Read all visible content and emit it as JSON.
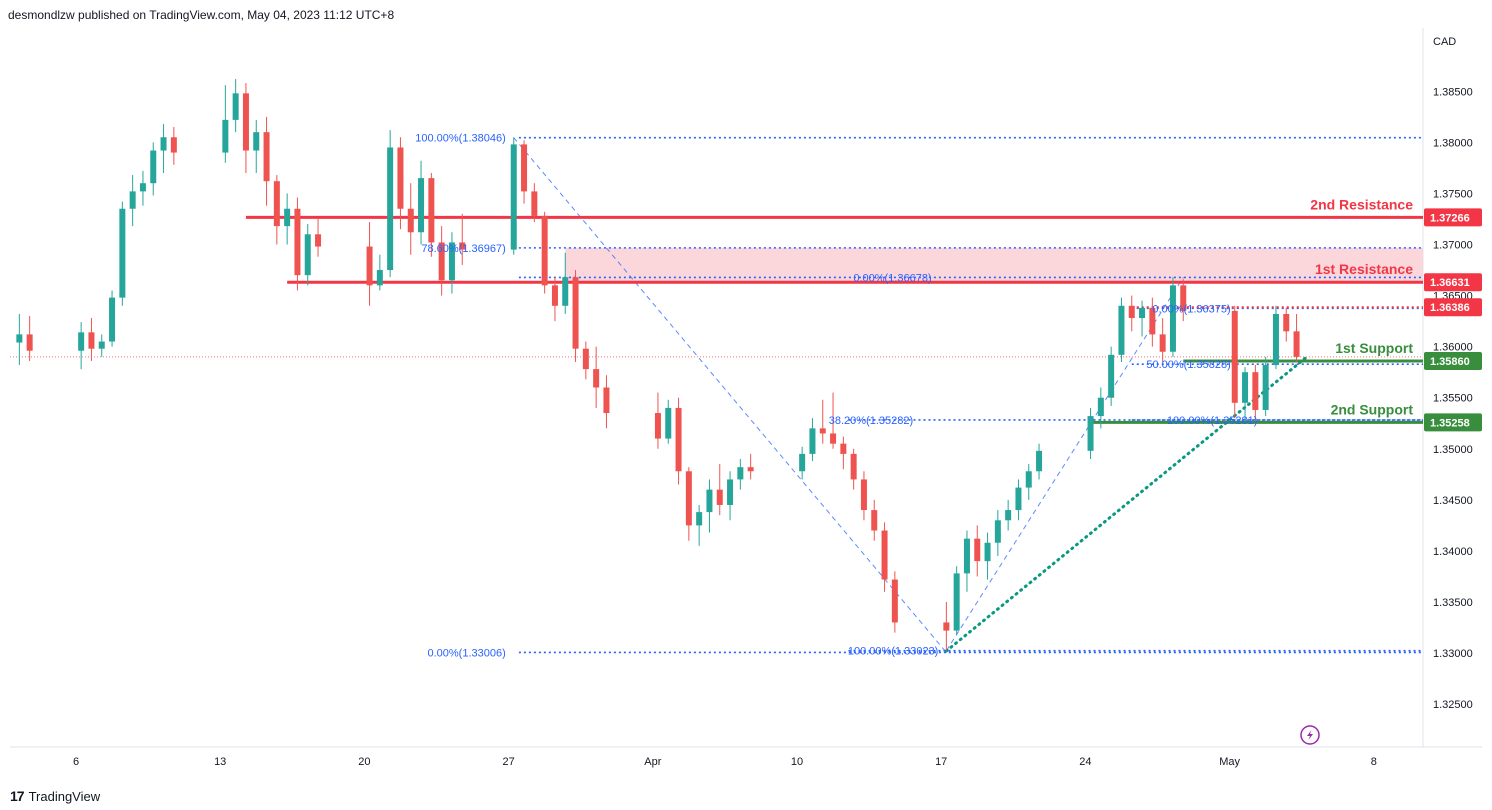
{
  "header": {
    "publisher": "desmondlzw published on TradingView.com, May 04, 2023 11:12 UTC+8"
  },
  "footer": {
    "brand_mark": "17",
    "brand": "TradingView"
  },
  "colors": {
    "up": "#26a69a",
    "down": "#ef5350",
    "resistance": "#f23645",
    "resistance_zone": "#fbd3d7",
    "support": "#388e3c",
    "fib": "#2962ff",
    "trend": "#089981",
    "bg": "#ffffff",
    "axis_text": "#131722"
  },
  "chart_data": {
    "type": "candlestick",
    "currency": "CAD",
    "ylim": [
      1.321,
      1.391
    ],
    "price_ticks": [
      "1.38500",
      "1.38000",
      "1.37500",
      "1.37000",
      "1.36500",
      "1.36000",
      "1.35500",
      "1.35000",
      "1.34500",
      "1.34000",
      "1.33500",
      "1.33000",
      "1.32500"
    ],
    "x_ticks": [
      {
        "label": "6",
        "date": "2023-03-06"
      },
      {
        "label": "13",
        "date": "2023-03-13"
      },
      {
        "label": "20",
        "date": "2023-03-20"
      },
      {
        "label": "27",
        "date": "2023-03-27"
      },
      {
        "label": "Apr",
        "date": "2023-04-03"
      },
      {
        "label": "10",
        "date": "2023-04-10"
      },
      {
        "label": "17",
        "date": "2023-04-17"
      },
      {
        "label": "24",
        "date": "2023-04-24"
      },
      {
        "label": "May",
        "date": "2023-05-01"
      },
      {
        "label": "8",
        "date": "2023-05-08"
      }
    ],
    "last_price": 1.359,
    "levels": [
      {
        "name": "2nd Resistance",
        "value": 1.37266,
        "label": "1.37266",
        "kind": "resistance"
      },
      {
        "name": "1st Resistance",
        "value": 1.36631,
        "label": "1.36631",
        "kind": "resistance"
      },
      {
        "name": "",
        "value": 1.36386,
        "label": "1.36386",
        "kind": "resistance"
      },
      {
        "name": "1st Support",
        "value": 1.3586,
        "label": "1.35860",
        "kind": "support"
      },
      {
        "name": "2nd Support",
        "value": 1.35258,
        "label": "1.35258",
        "kind": "support"
      }
    ],
    "resistance_zone": [
      1.36631,
      1.36967
    ],
    "fib_labels": [
      {
        "text": "100.00%(1.38046)",
        "value": 1.38046
      },
      {
        "text": "78.60%(1.36967)",
        "value": 1.36967
      },
      {
        "text": "0.00%(1.33006)",
        "value": 1.33006
      },
      {
        "text": "0.00%(1.36678)",
        "value": 1.36678
      },
      {
        "text": "38.20%(1.35282)",
        "value": 1.35282
      },
      {
        "text": "100.00%(1.33023)",
        "value": 1.33023
      },
      {
        "text": "0.00%(1.36375)",
        "value": 1.36375
      },
      {
        "text": "50.00%(1.35828)",
        "value": 1.35828
      },
      {
        "text": "100.00%(1.35281)",
        "value": 1.35281
      }
    ],
    "candles": [
      {
        "d": "2023-03-03 06:00",
        "o": 1.3604,
        "h": 1.3632,
        "l": 1.3582,
        "c": 1.3612
      },
      {
        "d": "2023-03-03 18:00",
        "o": 1.3612,
        "h": 1.363,
        "l": 1.3586,
        "c": 1.3596
      },
      {
        "d": "2023-03-06 06:00",
        "o": 1.3596,
        "h": 1.3624,
        "l": 1.3578,
        "c": 1.3614
      },
      {
        "d": "2023-03-06 18:00",
        "o": 1.3614,
        "h": 1.3628,
        "l": 1.3586,
        "c": 1.3598
      },
      {
        "d": "2023-03-07 06:00",
        "o": 1.3598,
        "h": 1.3612,
        "l": 1.359,
        "c": 1.3605
      },
      {
        "d": "2023-03-07 18:00",
        "o": 1.3605,
        "h": 1.3655,
        "l": 1.36,
        "c": 1.3648
      },
      {
        "d": "2023-03-08 06:00",
        "o": 1.3648,
        "h": 1.3742,
        "l": 1.364,
        "c": 1.3735
      },
      {
        "d": "2023-03-08 18:00",
        "o": 1.3735,
        "h": 1.3768,
        "l": 1.3718,
        "c": 1.3752
      },
      {
        "d": "2023-03-09 06:00",
        "o": 1.3752,
        "h": 1.3772,
        "l": 1.3738,
        "c": 1.376
      },
      {
        "d": "2023-03-09 18:00",
        "o": 1.376,
        "h": 1.38,
        "l": 1.3748,
        "c": 1.3792
      },
      {
        "d": "2023-03-10 06:00",
        "o": 1.3792,
        "h": 1.3818,
        "l": 1.377,
        "c": 1.3805
      },
      {
        "d": "2023-03-10 18:00",
        "o": 1.3805,
        "h": 1.3815,
        "l": 1.3778,
        "c": 1.379
      },
      {
        "d": "2023-03-13 06:00",
        "o": 1.379,
        "h": 1.3856,
        "l": 1.378,
        "c": 1.3822
      },
      {
        "d": "2023-03-13 18:00",
        "o": 1.3822,
        "h": 1.3862,
        "l": 1.381,
        "c": 1.3848
      },
      {
        "d": "2023-03-14 06:00",
        "o": 1.3848,
        "h": 1.3858,
        "l": 1.377,
        "c": 1.3792
      },
      {
        "d": "2023-03-14 18:00",
        "o": 1.3792,
        "h": 1.3822,
        "l": 1.377,
        "c": 1.381
      },
      {
        "d": "2023-03-15 06:00",
        "o": 1.381,
        "h": 1.3825,
        "l": 1.3738,
        "c": 1.3762
      },
      {
        "d": "2023-03-15 18:00",
        "o": 1.3762,
        "h": 1.3768,
        "l": 1.37,
        "c": 1.3718
      },
      {
        "d": "2023-03-16 06:00",
        "o": 1.3718,
        "h": 1.375,
        "l": 1.37,
        "c": 1.3735
      },
      {
        "d": "2023-03-16 18:00",
        "o": 1.3735,
        "h": 1.3746,
        "l": 1.3655,
        "c": 1.367
      },
      {
        "d": "2023-03-17 06:00",
        "o": 1.367,
        "h": 1.372,
        "l": 1.366,
        "c": 1.371
      },
      {
        "d": "2023-03-17 18:00",
        "o": 1.371,
        "h": 1.3726,
        "l": 1.3688,
        "c": 1.3698
      },
      {
        "d": "2023-03-20 06:00",
        "o": 1.3698,
        "h": 1.3722,
        "l": 1.364,
        "c": 1.366
      },
      {
        "d": "2023-03-20 18:00",
        "o": 1.366,
        "h": 1.369,
        "l": 1.3655,
        "c": 1.3675
      },
      {
        "d": "2023-03-21 06:00",
        "o": 1.3675,
        "h": 1.3812,
        "l": 1.3668,
        "c": 1.3795
      },
      {
        "d": "2023-03-21 18:00",
        "o": 1.3795,
        "h": 1.3805,
        "l": 1.3715,
        "c": 1.3735
      },
      {
        "d": "2023-03-22 06:00",
        "o": 1.3735,
        "h": 1.376,
        "l": 1.369,
        "c": 1.3712
      },
      {
        "d": "2023-03-22 18:00",
        "o": 1.3712,
        "h": 1.3782,
        "l": 1.37,
        "c": 1.3765
      },
      {
        "d": "2023-03-23 06:00",
        "o": 1.3765,
        "h": 1.377,
        "l": 1.3688,
        "c": 1.3702
      },
      {
        "d": "2023-03-23 18:00",
        "o": 1.3702,
        "h": 1.3718,
        "l": 1.365,
        "c": 1.3665
      },
      {
        "d": "2023-03-24 06:00",
        "o": 1.3665,
        "h": 1.3712,
        "l": 1.3652,
        "c": 1.3702
      },
      {
        "d": "2023-03-24 18:00",
        "o": 1.3702,
        "h": 1.373,
        "l": 1.368,
        "c": 1.3695
      },
      {
        "d": "2023-03-27 06:00",
        "o": 1.3695,
        "h": 1.3805,
        "l": 1.369,
        "c": 1.3798
      },
      {
        "d": "2023-03-27 18:00",
        "o": 1.3798,
        "h": 1.3802,
        "l": 1.374,
        "c": 1.3752
      },
      {
        "d": "2023-03-28 06:00",
        "o": 1.3752,
        "h": 1.376,
        "l": 1.3722,
        "c": 1.3728
      },
      {
        "d": "2023-03-28 18:00",
        "o": 1.3728,
        "h": 1.3732,
        "l": 1.3652,
        "c": 1.366
      },
      {
        "d": "2023-03-29 06:00",
        "o": 1.366,
        "h": 1.3668,
        "l": 1.3625,
        "c": 1.364
      },
      {
        "d": "2023-03-29 18:00",
        "o": 1.364,
        "h": 1.3692,
        "l": 1.3632,
        "c": 1.3668
      },
      {
        "d": "2023-03-30 06:00",
        "o": 1.3668,
        "h": 1.3675,
        "l": 1.3585,
        "c": 1.3598
      },
      {
        "d": "2023-03-30 18:00",
        "o": 1.3598,
        "h": 1.3605,
        "l": 1.3568,
        "c": 1.3578
      },
      {
        "d": "2023-03-31 06:00",
        "o": 1.3578,
        "h": 1.36,
        "l": 1.354,
        "c": 1.356
      },
      {
        "d": "2023-03-31 18:00",
        "o": 1.356,
        "h": 1.3572,
        "l": 1.352,
        "c": 1.3535
      },
      {
        "d": "2023-04-03 06:00",
        "o": 1.3535,
        "h": 1.3555,
        "l": 1.35,
        "c": 1.351
      },
      {
        "d": "2023-04-03 18:00",
        "o": 1.351,
        "h": 1.3548,
        "l": 1.3505,
        "c": 1.354
      },
      {
        "d": "2023-04-04 06:00",
        "o": 1.354,
        "h": 1.355,
        "l": 1.3465,
        "c": 1.3478
      },
      {
        "d": "2023-04-04 18:00",
        "o": 1.3478,
        "h": 1.3482,
        "l": 1.341,
        "c": 1.3425
      },
      {
        "d": "2023-04-05 06:00",
        "o": 1.3425,
        "h": 1.3445,
        "l": 1.3405,
        "c": 1.3438
      },
      {
        "d": "2023-04-05 18:00",
        "o": 1.3438,
        "h": 1.347,
        "l": 1.3418,
        "c": 1.346
      },
      {
        "d": "2023-04-06 06:00",
        "o": 1.346,
        "h": 1.3485,
        "l": 1.3435,
        "c": 1.3445
      },
      {
        "d": "2023-04-06 18:00",
        "o": 1.3445,
        "h": 1.3478,
        "l": 1.343,
        "c": 1.347
      },
      {
        "d": "2023-04-07 06:00",
        "o": 1.347,
        "h": 1.349,
        "l": 1.346,
        "c": 1.3482
      },
      {
        "d": "2023-04-07 18:00",
        "o": 1.3482,
        "h": 1.3495,
        "l": 1.347,
        "c": 1.3478
      },
      {
        "d": "2023-04-10 06:00",
        "o": 1.3478,
        "h": 1.3502,
        "l": 1.347,
        "c": 1.3495
      },
      {
        "d": "2023-04-10 18:00",
        "o": 1.3495,
        "h": 1.353,
        "l": 1.3488,
        "c": 1.352
      },
      {
        "d": "2023-04-11 06:00",
        "o": 1.352,
        "h": 1.3548,
        "l": 1.3505,
        "c": 1.3515
      },
      {
        "d": "2023-04-11 18:00",
        "o": 1.3515,
        "h": 1.3555,
        "l": 1.35,
        "c": 1.3505
      },
      {
        "d": "2023-04-12 06:00",
        "o": 1.3505,
        "h": 1.3512,
        "l": 1.348,
        "c": 1.3495
      },
      {
        "d": "2023-04-12 18:00",
        "o": 1.3495,
        "h": 1.35,
        "l": 1.346,
        "c": 1.347
      },
      {
        "d": "2023-04-13 06:00",
        "o": 1.347,
        "h": 1.3478,
        "l": 1.343,
        "c": 1.344
      },
      {
        "d": "2023-04-13 18:00",
        "o": 1.344,
        "h": 1.345,
        "l": 1.341,
        "c": 1.342
      },
      {
        "d": "2023-04-14 06:00",
        "o": 1.342,
        "h": 1.3428,
        "l": 1.336,
        "c": 1.3372
      },
      {
        "d": "2023-04-14 18:00",
        "o": 1.3372,
        "h": 1.338,
        "l": 1.332,
        "c": 1.333
      },
      {
        "d": "2023-04-17 06:00",
        "o": 1.333,
        "h": 1.335,
        "l": 1.3302,
        "c": 1.3322
      },
      {
        "d": "2023-04-17 18:00",
        "o": 1.3322,
        "h": 1.3385,
        "l": 1.3318,
        "c": 1.3378
      },
      {
        "d": "2023-04-18 06:00",
        "o": 1.3378,
        "h": 1.342,
        "l": 1.336,
        "c": 1.3412
      },
      {
        "d": "2023-04-18 18:00",
        "o": 1.3412,
        "h": 1.3425,
        "l": 1.3375,
        "c": 1.339
      },
      {
        "d": "2023-04-19 06:00",
        "o": 1.339,
        "h": 1.3418,
        "l": 1.3372,
        "c": 1.3408
      },
      {
        "d": "2023-04-19 18:00",
        "o": 1.3408,
        "h": 1.344,
        "l": 1.3395,
        "c": 1.343
      },
      {
        "d": "2023-04-20 06:00",
        "o": 1.343,
        "h": 1.345,
        "l": 1.342,
        "c": 1.344
      },
      {
        "d": "2023-04-20 18:00",
        "o": 1.344,
        "h": 1.347,
        "l": 1.343,
        "c": 1.3462
      },
      {
        "d": "2023-04-21 06:00",
        "o": 1.3462,
        "h": 1.3485,
        "l": 1.345,
        "c": 1.3478
      },
      {
        "d": "2023-04-21 18:00",
        "o": 1.3478,
        "h": 1.3505,
        "l": 1.347,
        "c": 1.3498
      },
      {
        "d": "2023-04-24 06:00",
        "o": 1.3498,
        "h": 1.354,
        "l": 1.349,
        "c": 1.3532
      },
      {
        "d": "2023-04-24 18:00",
        "o": 1.3532,
        "h": 1.356,
        "l": 1.352,
        "c": 1.355
      },
      {
        "d": "2023-04-25 06:00",
        "o": 1.355,
        "h": 1.36,
        "l": 1.3542,
        "c": 1.3592
      },
      {
        "d": "2023-04-25 18:00",
        "o": 1.3592,
        "h": 1.3648,
        "l": 1.3585,
        "c": 1.364
      },
      {
        "d": "2023-04-26 06:00",
        "o": 1.364,
        "h": 1.365,
        "l": 1.3615,
        "c": 1.3628
      },
      {
        "d": "2023-04-26 18:00",
        "o": 1.3628,
        "h": 1.3645,
        "l": 1.361,
        "c": 1.3638
      },
      {
        "d": "2023-04-27 06:00",
        "o": 1.3638,
        "h": 1.3648,
        "l": 1.36,
        "c": 1.3612
      },
      {
        "d": "2023-04-27 18:00",
        "o": 1.3612,
        "h": 1.3628,
        "l": 1.3585,
        "c": 1.3595
      },
      {
        "d": "2023-04-28 06:00",
        "o": 1.3595,
        "h": 1.3668,
        "l": 1.359,
        "c": 1.366
      },
      {
        "d": "2023-04-28 18:00",
        "o": 1.366,
        "h": 1.3666,
        "l": 1.3625,
        "c": 1.3635
      },
      {
        "d": "2023-05-01 06:00",
        "o": 1.3635,
        "h": 1.364,
        "l": 1.353,
        "c": 1.3545
      },
      {
        "d": "2023-05-01 18:00",
        "o": 1.3545,
        "h": 1.358,
        "l": 1.3528,
        "c": 1.3575
      },
      {
        "d": "2023-05-02 06:00",
        "o": 1.3575,
        "h": 1.3582,
        "l": 1.3528,
        "c": 1.3538
      },
      {
        "d": "2023-05-02 18:00",
        "o": 1.3538,
        "h": 1.359,
        "l": 1.3532,
        "c": 1.3582
      },
      {
        "d": "2023-05-03 06:00",
        "o": 1.3582,
        "h": 1.364,
        "l": 1.3578,
        "c": 1.3632
      },
      {
        "d": "2023-05-03 18:00",
        "o": 1.3632,
        "h": 1.3638,
        "l": 1.3605,
        "c": 1.3615
      },
      {
        "d": "2023-05-04 06:00",
        "o": 1.3615,
        "h": 1.3632,
        "l": 1.3585,
        "c": 1.359
      }
    ]
  }
}
